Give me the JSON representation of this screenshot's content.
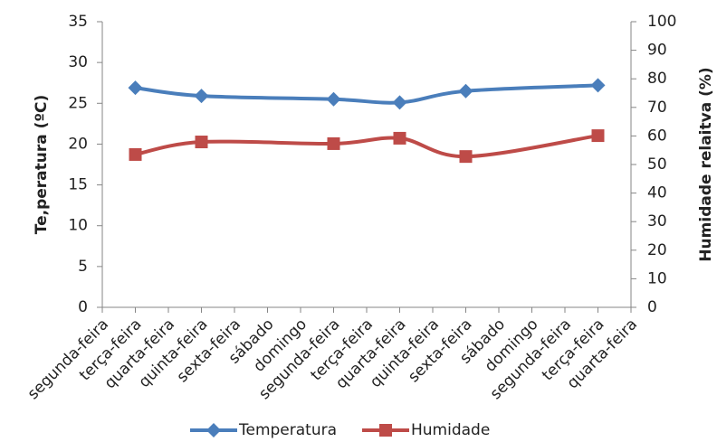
{
  "chart_data": {
    "type": "line",
    "categories": [
      "segunda-feira",
      "terça-feira",
      "quarta-feira",
      "quinta-feira",
      "sexta-feira",
      "sábado",
      "domingo",
      "segunda-feira",
      "terça-feira",
      "quarta-feira",
      "quinta-feira",
      "sexta-feira",
      "sábado",
      "domingo",
      "segunda-feira",
      "terça-feira",
      "quarta-feira"
    ],
    "series": [
      {
        "name": "Temperatura",
        "color": "#4a7ebb",
        "values": [
          null,
          26.9,
          null,
          25.9,
          null,
          null,
          null,
          25.5,
          null,
          25.1,
          null,
          26.5,
          null,
          null,
          null,
          27.2,
          null
        ]
      },
      {
        "name": "Humidade",
        "color": "#be4b48",
        "axis": "y2",
        "values": [
          null,
          53.5,
          null,
          57.9,
          null,
          null,
          null,
          57.3,
          null,
          59.2,
          null,
          52.8,
          null,
          null,
          null,
          60.1,
          null
        ]
      }
    ],
    "y_label": "Te,peratura (ºC)",
    "y2_label": "Humidade relaitva (%)",
    "ylim": [
      0,
      35
    ],
    "yticks": [
      0,
      5,
      10,
      15,
      20,
      25,
      30,
      35
    ],
    "y2lim": [
      0,
      100
    ],
    "y2ticks": [
      0,
      10,
      20,
      30,
      40,
      50,
      60,
      70,
      80,
      90,
      100
    ],
    "grid": false,
    "legend": "bottom"
  }
}
